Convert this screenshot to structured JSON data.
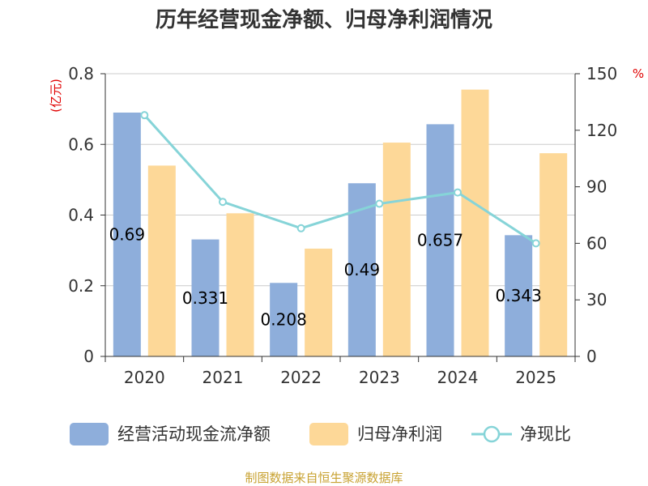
{
  "chart_data": {
    "type": "bar",
    "title": "历年经营现金净额、归母净利润情况",
    "categories": [
      "2020",
      "2021",
      "2022",
      "2023",
      "2024",
      "2025"
    ],
    "series": [
      {
        "name": "经营活动现金流净额",
        "type": "bar",
        "axis": "left",
        "color": "#8eaedb",
        "values": [
          0.69,
          0.331,
          0.208,
          0.49,
          0.657,
          0.343
        ]
      },
      {
        "name": "归母净利润",
        "type": "bar",
        "axis": "left",
        "color": "#fdd898",
        "values": [
          0.54,
          0.405,
          0.305,
          0.605,
          0.755,
          0.575
        ]
      },
      {
        "name": "净现比",
        "type": "line",
        "axis": "right",
        "color": "#86d4d8",
        "values": [
          128,
          82,
          68,
          81,
          87,
          60
        ]
      }
    ],
    "y_left": {
      "unit": "(亿元)",
      "ylim": [
        0,
        0.8
      ],
      "ticks": [
        "0",
        "0.2",
        "0.4",
        "0.6",
        "0.8"
      ]
    },
    "y_right": {
      "unit": "%",
      "ylim": [
        0,
        150
      ],
      "ticks": [
        "0",
        "30",
        "60",
        "90",
        "120",
        "150"
      ]
    },
    "data_labels": [
      "0.69",
      "0.331",
      "0.208",
      "0.49",
      "0.657",
      "0.343"
    ],
    "grid": true,
    "legend_position": "bottom"
  },
  "source": "制图数据来自恒生聚源数据库"
}
